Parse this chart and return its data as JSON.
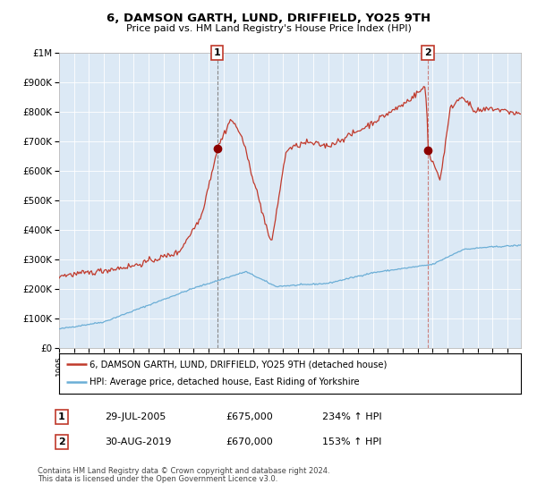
{
  "title": "6, DAMSON GARTH, LUND, DRIFFIELD, YO25 9TH",
  "subtitle": "Price paid vs. HM Land Registry's House Price Index (HPI)",
  "legend_line1": "6, DAMSON GARTH, LUND, DRIFFIELD, YO25 9TH (detached house)",
  "legend_line2": "HPI: Average price, detached house, East Riding of Yorkshire",
  "annotation1_date": "29-JUL-2005",
  "annotation1_price": "£675,000",
  "annotation1_hpi": "234% ↑ HPI",
  "annotation2_date": "30-AUG-2019",
  "annotation2_price": "£670,000",
  "annotation2_hpi": "153% ↑ HPI",
  "footer1": "Contains HM Land Registry data © Crown copyright and database right 2024.",
  "footer2": "This data is licensed under the Open Government Licence v3.0.",
  "bg_color": "#dce9f5",
  "red_line_color": "#c0392b",
  "blue_line_color": "#6baed6",
  "marker_color": "#8b0000",
  "ylim": [
    0,
    1000000
  ],
  "yticks": [
    0,
    100000,
    200000,
    300000,
    400000,
    500000,
    600000,
    700000,
    800000,
    900000,
    1000000
  ],
  "ytick_labels": [
    "£0",
    "£100K",
    "£200K",
    "£300K",
    "£400K",
    "£500K",
    "£600K",
    "£700K",
    "£800K",
    "£900K",
    "£1M"
  ],
  "sale1_x": 2005.58,
  "sale1_y": 675000,
  "sale2_x": 2019.67,
  "sale2_y": 670000,
  "xmin": 1995,
  "xmax": 2025.9
}
